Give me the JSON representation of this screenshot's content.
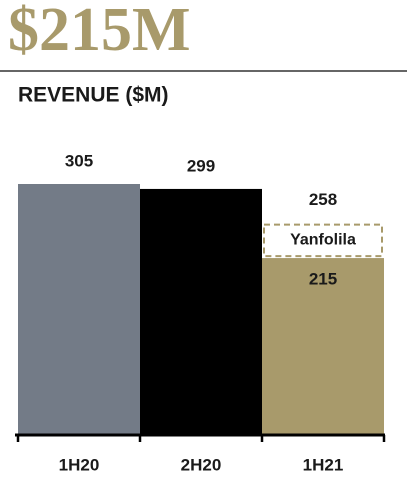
{
  "chart_data": {
    "type": "stacked-bar",
    "title": "$215M",
    "subtitle": "REVENUE ($M)",
    "categories": [
      "1H20",
      "2H20",
      "1H21"
    ],
    "series": [
      {
        "name": "Revenue",
        "colors": [
          "#737b87",
          "#000000",
          "#a89a6b"
        ],
        "values": [
          305,
          299,
          215
        ]
      },
      {
        "name": "Yanfolila",
        "color": "#a89a6b",
        "values": [
          null,
          null,
          43
        ]
      }
    ],
    "totals": [
      null,
      null,
      258
    ],
    "ylim": [
      0,
      305
    ]
  }
}
